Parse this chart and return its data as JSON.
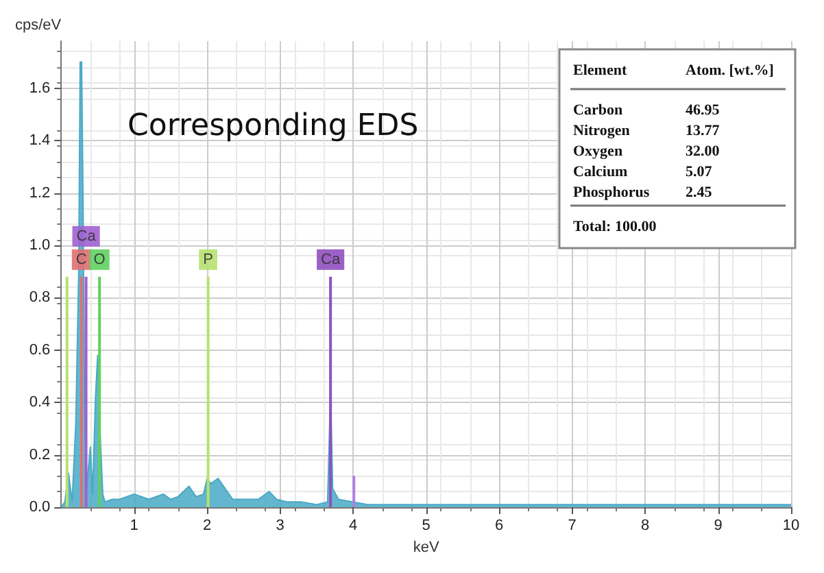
{
  "chart_data": {
    "type": "area",
    "title": "Corresponding EDS",
    "xlabel": "keV",
    "ylabel": "cps/eV",
    "xlim": [
      0,
      10
    ],
    "xticks": [
      1,
      2,
      3,
      4,
      5,
      6,
      7,
      8,
      9,
      10
    ],
    "ylim": [
      0,
      1.78
    ],
    "yticks": [
      {
        "value": 0,
        "label": "0.0"
      },
      0.2,
      0.4,
      0.6,
      0.8,
      {
        "value": 1,
        "label": "1.0"
      },
      1.2,
      1.4,
      1.6
    ],
    "grid": true,
    "marker": "none",
    "series": [
      {
        "color": "#49a9c6",
        "x": [
          0,
          0.05,
          0.1,
          0.15,
          0.2,
          0.24,
          0.26,
          0.28,
          0.3,
          0.32,
          0.35,
          0.4,
          0.43,
          0.47,
          0.5,
          0.53,
          0.57,
          0.6,
          0.7,
          0.8,
          0.9,
          1.0,
          1.1,
          1.2,
          1.3,
          1.4,
          1.5,
          1.6,
          1.75,
          1.85,
          1.95,
          2.0,
          2.05,
          2.15,
          2.25,
          2.35,
          2.5,
          2.7,
          2.85,
          2.95,
          3.1,
          3.3,
          3.5,
          3.65,
          3.69,
          3.72,
          3.8,
          4.0,
          4.2,
          4.5,
          5,
          5.5,
          6,
          6.5,
          7,
          7.5,
          8,
          8.5,
          9,
          9.5,
          10
        ],
        "values": [
          0,
          0.02,
          0.13,
          0.02,
          0.32,
          0.9,
          1.7,
          1.7,
          1.15,
          0.4,
          0.08,
          0.23,
          0.05,
          0.42,
          0.58,
          0.3,
          0.05,
          0.02,
          0.03,
          0.03,
          0.04,
          0.05,
          0.04,
          0.03,
          0.04,
          0.05,
          0.03,
          0.04,
          0.08,
          0.04,
          0.05,
          0.11,
          0.09,
          0.11,
          0.07,
          0.03,
          0.03,
          0.03,
          0.06,
          0.03,
          0.02,
          0.02,
          0.01,
          0.02,
          0.44,
          0.07,
          0.03,
          0.02,
          0.01,
          0.01,
          0.01,
          0.01,
          0.01,
          0.01,
          0.01,
          0.01,
          0.01,
          0.01,
          0.01,
          0.01,
          0.01
        ]
      },
      {
        "type": "bar",
        "x": [
          0.08,
          0.277,
          0.341,
          0.525,
          2.013,
          3.69,
          4.01
        ],
        "values": [
          0.88,
          0.88,
          0.88,
          0.88,
          0.88,
          0.88,
          0.12
        ],
        "colors": [
          "#b8e070",
          "#e07070",
          "#a060d0",
          "#60d060",
          "#b8e070",
          "#9050c0",
          "#b080e0"
        ],
        "value_labels": [
          null,
          "C",
          "Ca",
          "O",
          "P",
          "Ca",
          null
        ]
      }
    ],
    "annotations": [
      "Element",
      "Atom. [wt.%]",
      "Carbon",
      "46.95",
      "Nitrogen",
      "13.77",
      "Oxygen",
      "32.00",
      "Calcium",
      "5.07",
      "Phosphorus",
      "2.45",
      "Total: 100.00"
    ]
  }
}
